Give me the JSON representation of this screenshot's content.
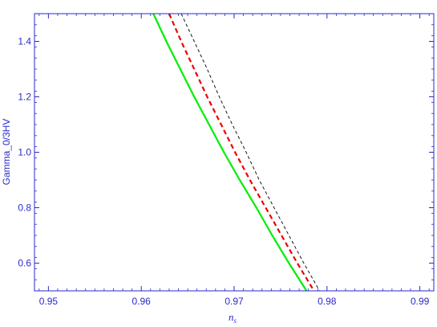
{
  "chart_data": {
    "type": "line",
    "title": "",
    "xlabel": "n",
    "xlabel_sub": "s",
    "ylabel": "Gamma_0/3HV",
    "xlim": [
      0.9485,
      0.9915
    ],
    "ylim": [
      0.5,
      1.5
    ],
    "xticks": [
      0.95,
      0.96,
      0.97,
      0.98,
      0.99
    ],
    "xtick_labels": [
      "0.95",
      "0.96",
      "0.97",
      "0.98",
      "0.99"
    ],
    "yticks": [
      0.6,
      0.8,
      1.0,
      1.2,
      1.4
    ],
    "ytick_labels": [
      "0.6",
      "0.8",
      "1.0",
      "1.2",
      "1.4"
    ],
    "grid": false,
    "legend": "none",
    "frame_color": "#2a2acc",
    "series": [
      {
        "style": "solid",
        "color": "#00ee00",
        "points": [
          [
            0.9613,
            1.5
          ],
          [
            0.9627,
            1.4
          ],
          [
            0.9642,
            1.3
          ],
          [
            0.9657,
            1.2
          ],
          [
            0.9673,
            1.1
          ],
          [
            0.9689,
            1.0
          ],
          [
            0.9706,
            0.9
          ],
          [
            0.9724,
            0.8
          ],
          [
            0.9741,
            0.7
          ],
          [
            0.9759,
            0.6
          ],
          [
            0.9778,
            0.5
          ]
        ]
      },
      {
        "style": "dashed",
        "color": "#ee0000",
        "points": [
          [
            0.963,
            1.5
          ],
          [
            0.9643,
            1.4
          ],
          [
            0.9657,
            1.3
          ],
          [
            0.9671,
            1.2
          ],
          [
            0.9686,
            1.1
          ],
          [
            0.9701,
            1.0
          ],
          [
            0.9717,
            0.9
          ],
          [
            0.9734,
            0.8
          ],
          [
            0.9751,
            0.7
          ],
          [
            0.9768,
            0.6
          ],
          [
            0.9786,
            0.5
          ]
        ]
      },
      {
        "style": "dashed-thin",
        "color": "#000000",
        "points": [
          [
            0.9643,
            1.5
          ],
          [
            0.9657,
            1.4
          ],
          [
            0.9671,
            1.3
          ],
          [
            0.9684,
            1.2
          ],
          [
            0.9698,
            1.1
          ],
          [
            0.9713,
            1.0
          ],
          [
            0.9727,
            0.9
          ],
          [
            0.9743,
            0.8
          ],
          [
            0.9759,
            0.7
          ],
          [
            0.9775,
            0.6
          ],
          [
            0.9792,
            0.5
          ]
        ]
      }
    ]
  }
}
